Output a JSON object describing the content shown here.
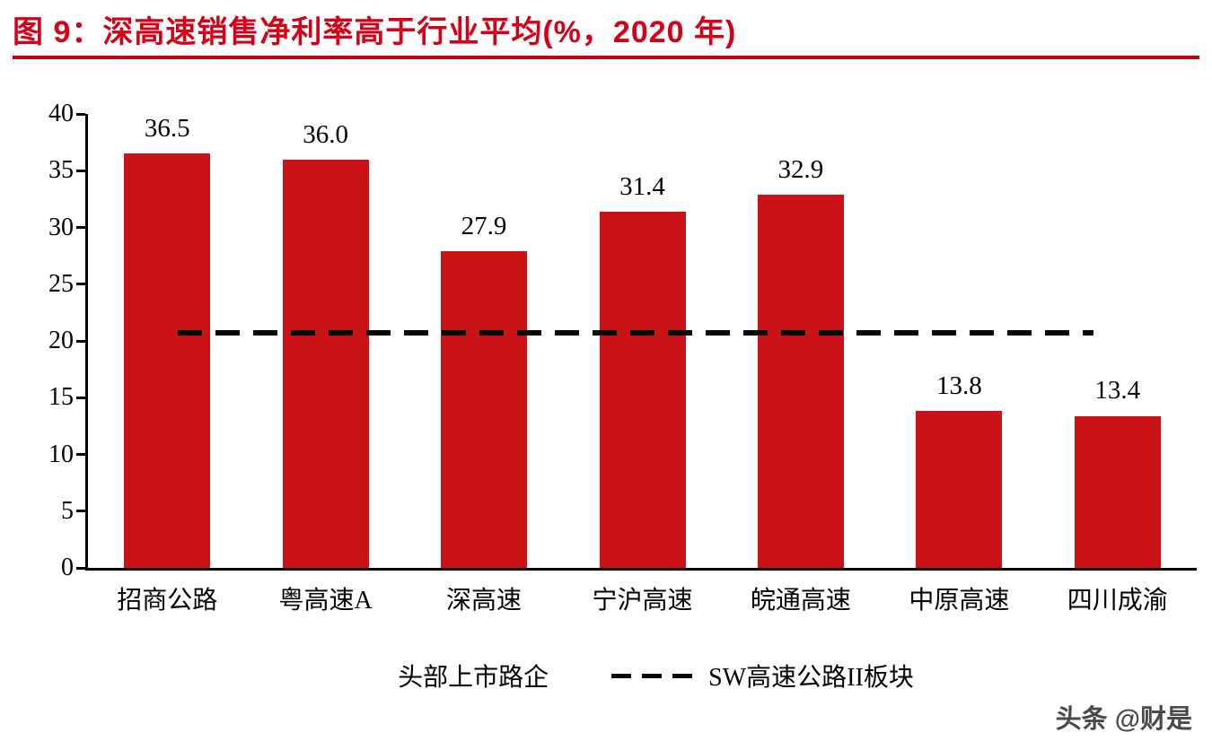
{
  "figure": {
    "title": "图 9：深高速销售净利率高于行业平均(%，2020 年)",
    "watermark": "头条 @财是"
  },
  "chart_data": {
    "type": "bar",
    "title": "深高速销售净利率高于行业平均(%，2020 年)",
    "categories": [
      "招商公路",
      "粤高速A",
      "深高速",
      "宁沪高速",
      "皖通高速",
      "中原高速",
      "四川成渝"
    ],
    "values": [
      36.5,
      36.0,
      27.9,
      31.4,
      32.9,
      13.8,
      13.4
    ],
    "value_labels": [
      "36.5",
      "36.0",
      "27.9",
      "31.4",
      "32.9",
      "13.8",
      "13.4"
    ],
    "bar_color": "#cb1216",
    "reference_line": {
      "value": 20.7,
      "style": "dashed",
      "color": "#000000",
      "label": "SW高速公路II板块"
    },
    "ylim": [
      0,
      40
    ],
    "yticks": [
      0,
      5,
      10,
      15,
      20,
      25,
      30,
      35,
      40
    ],
    "xlabel": "",
    "ylabel": "",
    "grid": false,
    "legend_position": "bottom",
    "legend": [
      {
        "type": "bar",
        "label": "头部上市路企",
        "color": "#cb1216"
      },
      {
        "type": "dashed-line",
        "label": "SW高速公路II板块",
        "color": "#000000"
      }
    ]
  }
}
